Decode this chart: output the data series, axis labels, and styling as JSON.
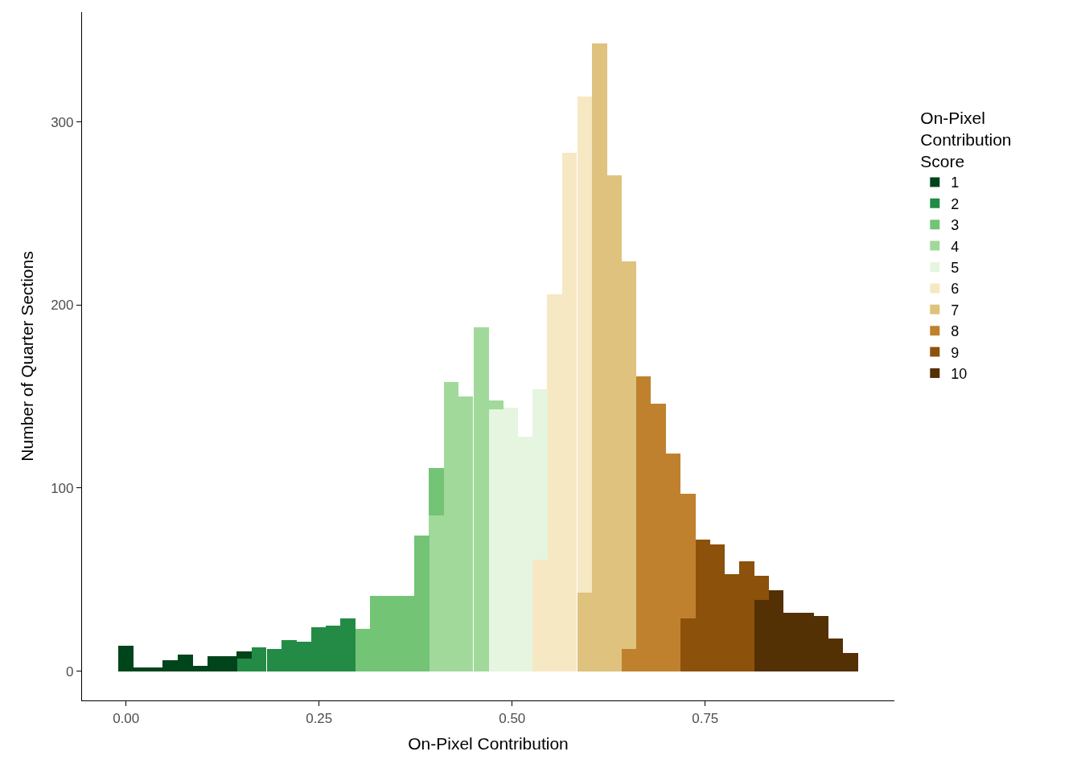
{
  "chart_data": {
    "type": "bar",
    "xlabel": "On-Pixel Contribution",
    "ylabel": "Number of Quarter Sections",
    "legend_title": "On-Pixel\nContribution\nScore",
    "x": [
      0,
      0.019,
      0.038,
      0.057,
      0.077,
      0.096,
      0.115,
      0.134,
      0.153,
      0.172,
      0.192,
      0.211,
      0.23,
      0.249,
      0.268,
      0.287,
      0.306,
      0.326,
      0.345,
      0.364,
      0.383,
      0.402,
      0.421,
      0.44,
      0.46,
      0.479,
      0.498,
      0.517,
      0.536,
      0.555,
      0.574,
      0.594,
      0.613,
      0.632,
      0.651,
      0.67,
      0.689,
      0.708,
      0.728,
      0.747,
      0.766,
      0.785,
      0.804,
      0.823,
      0.842,
      0.861,
      0.881,
      0.9,
      0.919,
      0.938
    ],
    "stacked": true,
    "series": [
      {
        "name": "10",
        "color": "#543005",
        "values": [
          null,
          null,
          null,
          null,
          null,
          null,
          null,
          null,
          null,
          null,
          null,
          null,
          null,
          null,
          null,
          null,
          null,
          null,
          null,
          null,
          null,
          null,
          null,
          null,
          null,
          null,
          null,
          null,
          null,
          null,
          null,
          null,
          null,
          null,
          null,
          null,
          null,
          null,
          null,
          null,
          null,
          null,
          null,
          39,
          44,
          32,
          32,
          30,
          18,
          10
        ]
      },
      {
        "name": "9",
        "color": "#8c510a",
        "values": [
          null,
          null,
          null,
          null,
          null,
          null,
          null,
          null,
          null,
          null,
          null,
          null,
          null,
          null,
          null,
          null,
          null,
          null,
          null,
          null,
          null,
          null,
          null,
          null,
          null,
          null,
          null,
          null,
          null,
          null,
          null,
          null,
          null,
          null,
          null,
          null,
          null,
          null,
          29,
          72,
          69,
          53,
          60,
          13,
          null,
          null,
          null,
          null,
          null,
          null
        ]
      },
      {
        "name": "8",
        "color": "#bf812d",
        "values": [
          null,
          null,
          null,
          null,
          null,
          null,
          null,
          null,
          null,
          null,
          null,
          null,
          null,
          null,
          null,
          null,
          null,
          null,
          null,
          null,
          null,
          null,
          null,
          null,
          null,
          null,
          null,
          null,
          null,
          null,
          null,
          null,
          null,
          null,
          12,
          161,
          146,
          119,
          68,
          null,
          null,
          null,
          null,
          null,
          null,
          null,
          null,
          null,
          null,
          null
        ]
      },
      {
        "name": "7",
        "color": "#dfc27d",
        "values": [
          null,
          null,
          null,
          null,
          null,
          null,
          null,
          null,
          null,
          null,
          null,
          null,
          null,
          null,
          null,
          null,
          null,
          null,
          null,
          null,
          null,
          null,
          null,
          null,
          null,
          null,
          null,
          null,
          null,
          null,
          null,
          43,
          343,
          271,
          212,
          null,
          null,
          null,
          null,
          null,
          null,
          null,
          null,
          null,
          null,
          null,
          null,
          null,
          null,
          null
        ]
      },
      {
        "name": "6",
        "color": "#f6e8c3",
        "values": [
          null,
          null,
          null,
          null,
          null,
          null,
          null,
          null,
          null,
          null,
          null,
          null,
          null,
          null,
          null,
          null,
          null,
          null,
          null,
          null,
          null,
          null,
          null,
          null,
          null,
          null,
          null,
          null,
          61,
          206,
          283,
          271,
          null,
          null,
          null,
          null,
          null,
          null,
          null,
          null,
          null,
          null,
          null,
          null,
          null,
          null,
          null,
          null,
          null,
          null
        ]
      },
      {
        "name": "5",
        "color": "#e5f5e0",
        "values": [
          null,
          null,
          null,
          null,
          null,
          null,
          null,
          null,
          null,
          null,
          null,
          null,
          null,
          null,
          null,
          null,
          null,
          null,
          null,
          null,
          null,
          null,
          null,
          null,
          null,
          143,
          144,
          128,
          93,
          null,
          null,
          null,
          null,
          null,
          null,
          null,
          null,
          null,
          null,
          null,
          null,
          null,
          null,
          null,
          null,
          null,
          null,
          null,
          null,
          null
        ]
      },
      {
        "name": "4",
        "color": "#a1d99b",
        "values": [
          null,
          null,
          null,
          null,
          null,
          null,
          null,
          null,
          null,
          null,
          null,
          null,
          null,
          null,
          null,
          null,
          null,
          null,
          null,
          null,
          null,
          85,
          158,
          150,
          188,
          5,
          null,
          null,
          null,
          null,
          null,
          null,
          null,
          null,
          null,
          null,
          null,
          null,
          null,
          null,
          null,
          null,
          null,
          null,
          null,
          null,
          null,
          null,
          null,
          null
        ]
      },
      {
        "name": "3",
        "color": "#74c476",
        "values": [
          null,
          null,
          null,
          null,
          null,
          null,
          null,
          null,
          null,
          null,
          null,
          null,
          null,
          null,
          null,
          null,
          23,
          41,
          41,
          41,
          74,
          26,
          null,
          null,
          null,
          null,
          null,
          null,
          null,
          null,
          null,
          null,
          null,
          null,
          null,
          null,
          null,
          null,
          null,
          null,
          null,
          null,
          null,
          null,
          null,
          null,
          null,
          null,
          null,
          null
        ]
      },
      {
        "name": "2",
        "color": "#238b45",
        "values": [
          null,
          null,
          null,
          null,
          null,
          null,
          null,
          null,
          7,
          13,
          12,
          17,
          16,
          24,
          25,
          29,
          null,
          null,
          null,
          null,
          null,
          null,
          null,
          null,
          null,
          null,
          null,
          null,
          null,
          null,
          null,
          null,
          null,
          null,
          null,
          null,
          null,
          null,
          null,
          null,
          null,
          null,
          null,
          null,
          null,
          null,
          null,
          null,
          null,
          null
        ]
      },
      {
        "name": "1",
        "color": "#00441b",
        "values": [
          14,
          2,
          2,
          6,
          9,
          3,
          8,
          8,
          4,
          null,
          null,
          null,
          null,
          null,
          null,
          null,
          null,
          null,
          null,
          null,
          null,
          null,
          null,
          null,
          null,
          null,
          null,
          null,
          null,
          null,
          null,
          null,
          null,
          null,
          null,
          null,
          null,
          null,
          null,
          null,
          null,
          null,
          null,
          null,
          null,
          null,
          null,
          null,
          null,
          null
        ]
      }
    ],
    "xlim": [
      -0.057,
      0.995
    ],
    "ylim": [
      -16,
      360
    ],
    "xticks": [
      {
        "value": 0,
        "label": "0.00"
      },
      {
        "value": 0.25,
        "label": "0.25"
      },
      {
        "value": 0.5,
        "label": "0.50"
      },
      {
        "value": 0.75,
        "label": "0.75"
      }
    ],
    "yticks": [
      0,
      100,
      200,
      300
    ],
    "legend": "right"
  }
}
